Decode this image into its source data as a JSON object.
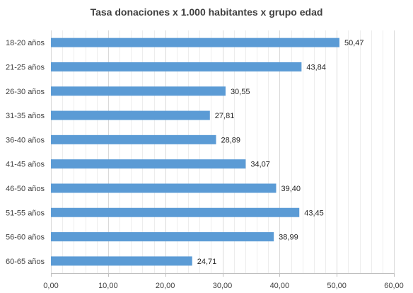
{
  "chart_data": {
    "type": "bar",
    "orientation": "horizontal",
    "title": "Tasa donaciones x 1.000 habitantes x grupo edad",
    "xlabel": "",
    "ylabel": "",
    "categories": [
      "18-20 años",
      "21-25 años",
      "26-30 años",
      "31-35 años",
      "36-40 años",
      "41-45 años",
      "46-50 años",
      "51-55 años",
      "56-60 años",
      "60-65 años"
    ],
    "values": [
      50.47,
      43.84,
      30.55,
      27.81,
      28.89,
      34.07,
      39.4,
      43.45,
      38.99,
      24.71
    ],
    "value_labels": [
      "50,47",
      "43,84",
      "30,55",
      "27,81",
      "28,89",
      "34,07",
      "39,40",
      "43,45",
      "38,99",
      "24,71"
    ],
    "xlim": [
      0,
      60
    ],
    "xticks": [
      0,
      10,
      20,
      30,
      40,
      50,
      60
    ],
    "xtick_labels": [
      "0,00",
      "10,00",
      "20,00",
      "30,00",
      "40,00",
      "50,00",
      "60,00"
    ],
    "minor_grid_step": 2,
    "grid": true,
    "legend": "none",
    "bar_color": "#5b9bd5"
  }
}
